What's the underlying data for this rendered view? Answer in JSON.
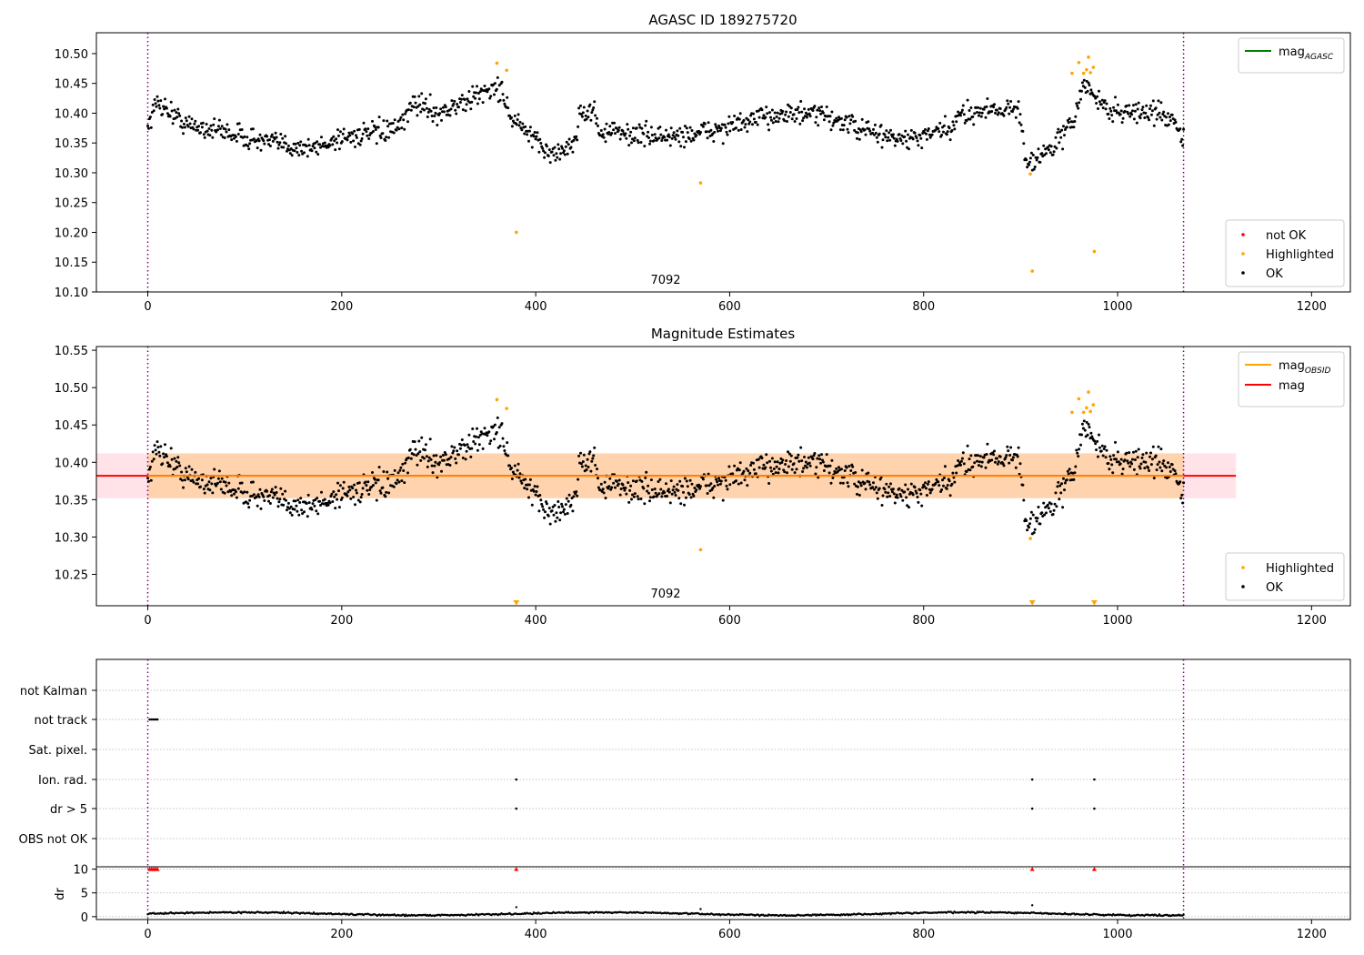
{
  "chart_data": [
    {
      "type": "scatter",
      "title": "AGASC ID 189275720",
      "xlim": [
        -53,
        1240
      ],
      "ylim": [
        10.1,
        10.535
      ],
      "x_ticks": [
        0,
        200,
        400,
        600,
        800,
        1000,
        1200
      ],
      "y_ticks": [
        10.1,
        10.15,
        10.2,
        10.25,
        10.3,
        10.35,
        10.4,
        10.45,
        10.5
      ],
      "obsid_label": "7092",
      "obsid_label_x": 534,
      "obsid_boundaries": [
        0,
        1068
      ],
      "legend_top": [
        {
          "label": "mag",
          "subscript": "AGASC",
          "color": "#008000"
        }
      ],
      "legend_bottom": [
        {
          "label": "not OK",
          "color": "#ff0000"
        },
        {
          "label": "Highlighted",
          "color": "#ffa500"
        },
        {
          "label": "OK",
          "color": "#000000"
        }
      ],
      "series": [
        {
          "name": "Highlighted",
          "color": "#ffa500",
          "x": [
            360,
            370,
            380,
            570,
            910,
            912,
            953,
            960,
            965,
            968,
            970,
            972,
            975,
            976
          ],
          "y": [
            10.484,
            10.472,
            10.2,
            10.283,
            10.298,
            10.135,
            10.467,
            10.485,
            10.467,
            10.473,
            10.494,
            10.468,
            10.477,
            10.168
          ]
        }
      ],
      "ok_segments": [
        [
          0,
          10.38
        ],
        [
          10,
          10.42
        ],
        [
          40,
          10.38
        ],
        [
          80,
          10.37
        ],
        [
          110,
          10.355
        ],
        [
          150,
          10.345
        ],
        [
          170,
          10.34
        ],
        [
          200,
          10.36
        ],
        [
          230,
          10.365
        ],
        [
          260,
          10.375
        ],
        [
          275,
          10.42
        ],
        [
          300,
          10.4
        ],
        [
          330,
          10.42
        ],
        [
          350,
          10.44
        ],
        [
          365,
          10.44
        ],
        [
          375,
          10.39
        ],
        [
          390,
          10.37
        ],
        [
          400,
          10.35
        ],
        [
          420,
          10.33
        ],
        [
          440,
          10.35
        ],
        [
          445,
          10.4
        ],
        [
          460,
          10.405
        ],
        [
          465,
          10.37
        ],
        [
          500,
          10.365
        ],
        [
          540,
          10.36
        ],
        [
          580,
          10.37
        ],
        [
          620,
          10.385
        ],
        [
          650,
          10.4
        ],
        [
          700,
          10.395
        ],
        [
          740,
          10.37
        ],
        [
          780,
          10.355
        ],
        [
          800,
          10.36
        ],
        [
          830,
          10.375
        ],
        [
          840,
          10.4
        ],
        [
          880,
          10.41
        ],
        [
          900,
          10.4
        ],
        [
          905,
          10.32
        ],
        [
          920,
          10.325
        ],
        [
          940,
          10.355
        ],
        [
          955,
          10.39
        ],
        [
          965,
          10.45
        ],
        [
          975,
          10.43
        ],
        [
          990,
          10.405
        ],
        [
          1040,
          10.4
        ],
        [
          1060,
          10.39
        ],
        [
          1065,
          10.36
        ],
        [
          1068,
          10.355
        ]
      ]
    },
    {
      "type": "scatter",
      "title": "Magnitude Estimates",
      "xlim": [
        -53,
        1240
      ],
      "ylim": [
        10.208,
        10.555
      ],
      "x_ticks": [
        0,
        200,
        400,
        600,
        800,
        1000,
        1200
      ],
      "y_ticks": [
        10.25,
        10.3,
        10.35,
        10.4,
        10.45,
        10.5,
        10.55
      ],
      "obsid_label": "7092",
      "obsid_label_x": 534,
      "obsid_boundaries": [
        0,
        1068
      ],
      "mag_line": 10.382,
      "mag_band": [
        10.352,
        10.412
      ],
      "band_x": [
        -53,
        1122
      ],
      "legend_top": [
        {
          "label": "mag",
          "subscript": "OBSID",
          "color": "#ffa500"
        },
        {
          "label": "mag",
          "subscript": "",
          "color": "#ff0000"
        }
      ],
      "legend_bottom": [
        {
          "label": "Highlighted",
          "color": "#ffa500"
        },
        {
          "label": "OK",
          "color": "#000000"
        }
      ],
      "off_scale_markers": [
        380,
        912,
        976
      ]
    },
    {
      "type": "scatter",
      "title": "",
      "xlim": [
        -53,
        1240
      ],
      "x_ticks": [
        0,
        200,
        400,
        600,
        800,
        1000,
        1200
      ],
      "flag_rows": [
        "not Kalman",
        "not track",
        "Sat. pixel.",
        "Ion. rad.",
        "dr > 5",
        "OBS not OK"
      ],
      "flag_points": [
        {
          "row": "not track",
          "x": [
            2,
            4,
            6,
            8,
            10
          ]
        },
        {
          "row": "Ion. rad.",
          "x": [
            380,
            912,
            976
          ]
        },
        {
          "row": "dr > 5",
          "x": [
            380,
            912,
            976
          ]
        }
      ],
      "dr_ylabel": "dr",
      "dr_ylim": [
        -0.6,
        10.5
      ],
      "dr_ticks": [
        0,
        5,
        10
      ],
      "dr_flagged": {
        "x": [
          2,
          4,
          6,
          8,
          10,
          380,
          912,
          976
        ],
        "y": [
          10,
          10,
          10,
          10,
          10,
          10,
          10,
          10
        ]
      },
      "dr_outliers": {
        "x": [
          380,
          570,
          912
        ],
        "y": [
          2.0,
          1.6,
          2.4
        ]
      }
    }
  ]
}
